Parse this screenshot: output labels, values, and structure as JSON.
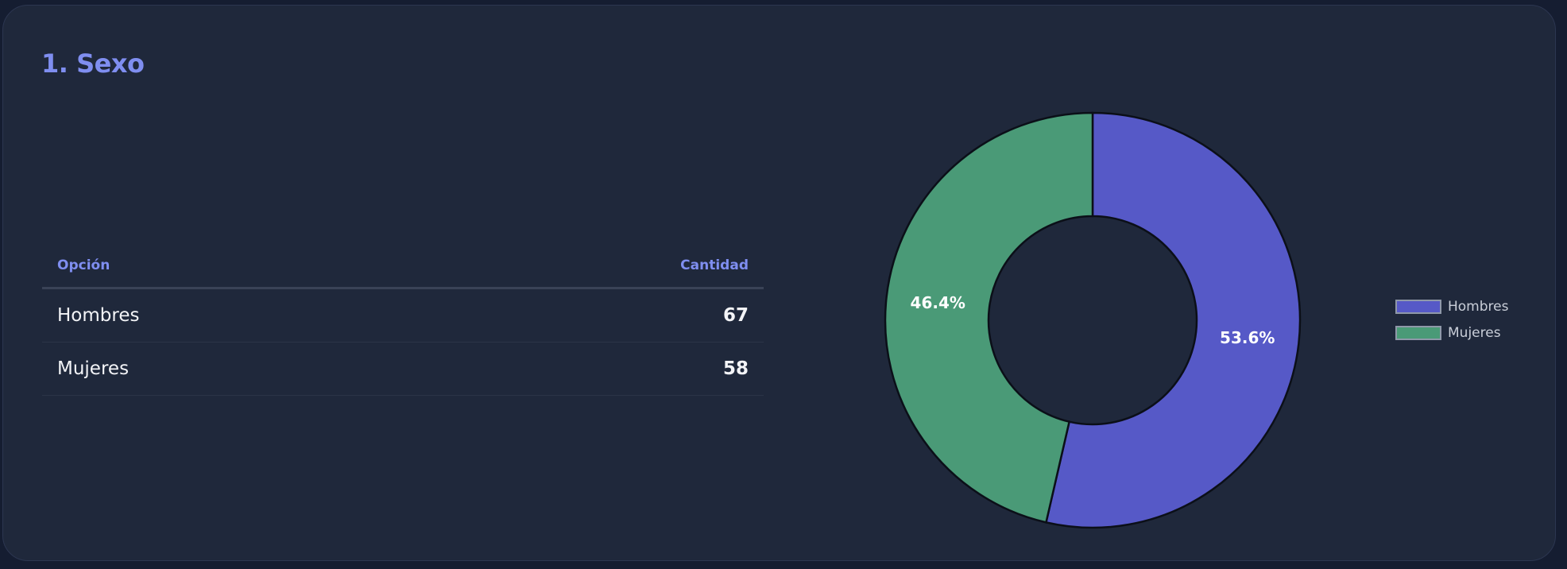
{
  "card": {
    "title": "1. Sexo"
  },
  "table": {
    "headers": {
      "option": "Opción",
      "count": "Cantidad"
    },
    "rows": [
      {
        "label": "Hombres",
        "value": "67"
      },
      {
        "label": "Mujeres",
        "value": "58"
      }
    ]
  },
  "chart_data": {
    "type": "pie",
    "variant": "doughnut",
    "categories": [
      "Hombres",
      "Mujeres"
    ],
    "values": [
      67,
      58
    ],
    "percent_labels": [
      "53.6%",
      "46.4%"
    ],
    "colors": [
      "#5659c7",
      "#4a9a77"
    ],
    "legend_position": "right",
    "title": ""
  },
  "legend": {
    "items": [
      {
        "label": "Hombres",
        "color": "#5659c7"
      },
      {
        "label": "Mujeres",
        "color": "#4a9a77"
      }
    ]
  }
}
